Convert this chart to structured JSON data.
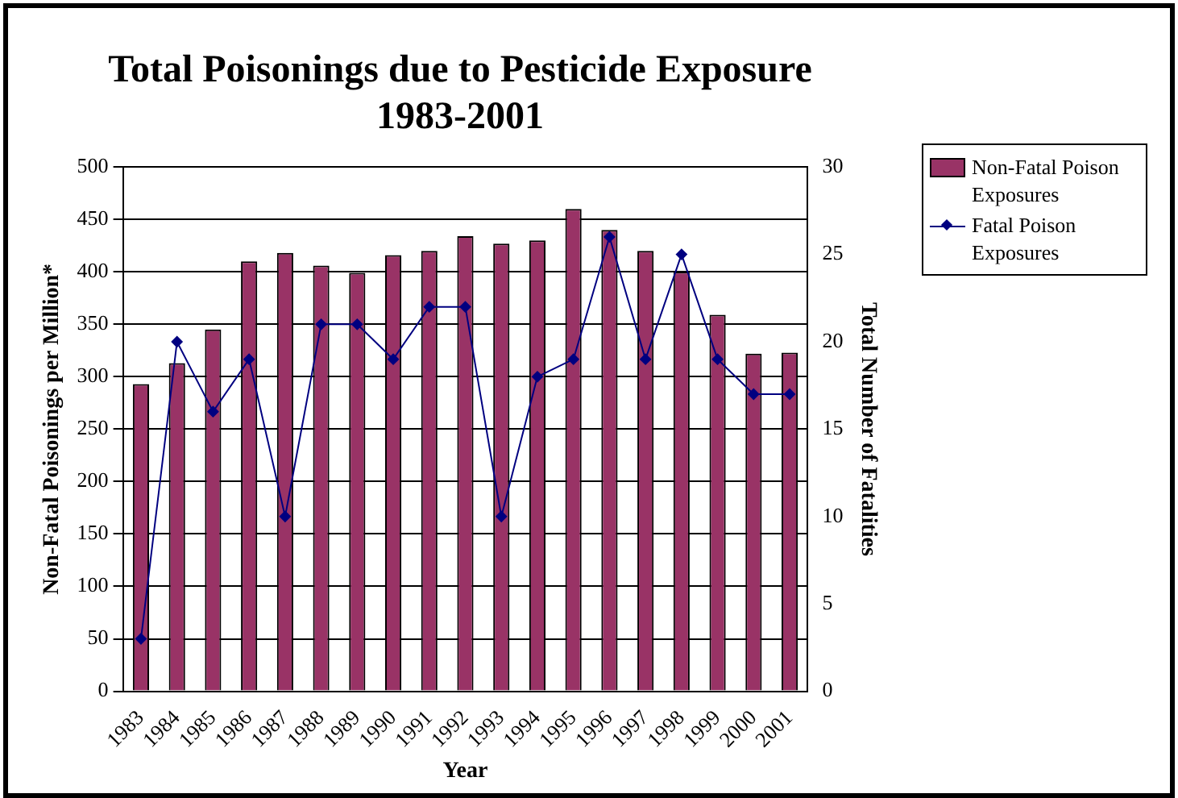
{
  "chart_data": {
    "type": "bar",
    "title": "Total Poisonings due to Pesticide Exposure\n1983-2001",
    "xlabel": "Year",
    "ylabel": "Non-Fatal Poisonings per Million*",
    "y2label": "Total Number of Fatalities",
    "categories": [
      "1983",
      "1984",
      "1985",
      "1986",
      "1987",
      "1988",
      "1989",
      "1990",
      "1991",
      "1992",
      "1993",
      "1994",
      "1995",
      "1996",
      "1997",
      "1998",
      "1999",
      "2000",
      "2001"
    ],
    "series": [
      {
        "name": "Non-Fatal Poison Exposures",
        "color": "#993366",
        "values": [
          293,
          313,
          345,
          410,
          418,
          406,
          399,
          416,
          420,
          434,
          427,
          430,
          460,
          440,
          420,
          400,
          359,
          322,
          323
        ]
      },
      {
        "name": "Fatal Poison Exposures",
        "type": "line",
        "axis": "y2",
        "color": "#000080",
        "values": [
          3,
          20,
          16,
          19,
          10,
          21,
          21,
          19,
          22,
          22,
          10,
          18,
          19,
          26,
          19,
          25,
          19,
          17,
          17
        ]
      }
    ],
    "ylim": [
      0,
      500
    ],
    "yticks": [
      0,
      50,
      100,
      150,
      200,
      250,
      300,
      350,
      400,
      450,
      500
    ],
    "y2lim": [
      0,
      30
    ],
    "y2ticks": [
      0,
      5,
      10,
      15,
      20,
      25,
      30
    ],
    "grid": "y",
    "legend": "top right",
    "marker": "diamond"
  }
}
